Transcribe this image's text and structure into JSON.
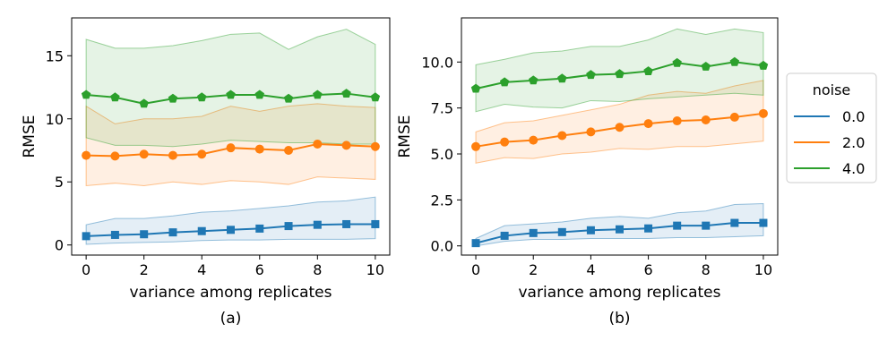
{
  "chart_data": [
    {
      "type": "line",
      "sublabel": "(a)",
      "xlabel": "variance among replicates",
      "ylabel": "RMSE",
      "xlim": [
        -0.5,
        10.5
      ],
      "ylim": [
        -0.8,
        18.0
      ],
      "xticks": [
        0,
        2,
        4,
        6,
        8,
        10
      ],
      "yticks": [
        0,
        5,
        10,
        15
      ],
      "x": [
        0,
        1,
        2,
        3,
        4,
        5,
        6,
        7,
        8,
        9,
        10
      ],
      "series": [
        {
          "name": "0.0",
          "color": "#1f77b4",
          "marker": "square",
          "values": [
            0.7,
            0.8,
            0.85,
            1.0,
            1.1,
            1.2,
            1.3,
            1.5,
            1.6,
            1.65,
            1.65
          ],
          "lower": [
            0.05,
            0.15,
            0.2,
            0.25,
            0.35,
            0.4,
            0.4,
            0.45,
            0.45,
            0.45,
            0.5
          ],
          "upper": [
            1.6,
            2.1,
            2.1,
            2.3,
            2.6,
            2.7,
            2.9,
            3.1,
            3.4,
            3.5,
            3.8
          ]
        },
        {
          "name": "2.0",
          "color": "#ff7f0e",
          "marker": "circle",
          "values": [
            7.1,
            7.05,
            7.2,
            7.1,
            7.2,
            7.7,
            7.6,
            7.5,
            8.0,
            7.9,
            7.8
          ],
          "lower": [
            4.7,
            4.9,
            4.7,
            5.0,
            4.8,
            5.1,
            5.0,
            4.8,
            5.4,
            5.3,
            5.2
          ],
          "upper": [
            11.0,
            9.6,
            10.0,
            10.0,
            10.2,
            11.0,
            10.6,
            11.0,
            11.2,
            11.0,
            10.9
          ]
        },
        {
          "name": "4.0",
          "color": "#2ca02c",
          "marker": "pentagon",
          "values": [
            11.9,
            11.7,
            11.2,
            11.6,
            11.7,
            11.9,
            11.9,
            11.6,
            11.9,
            12.0,
            11.7
          ],
          "lower": [
            8.5,
            7.9,
            7.9,
            7.8,
            8.0,
            8.3,
            8.2,
            8.1,
            8.1,
            8.0,
            8.0
          ],
          "upper": [
            16.3,
            15.6,
            15.6,
            15.8,
            16.2,
            16.7,
            16.8,
            15.5,
            16.5,
            17.1,
            15.9
          ]
        }
      ]
    },
    {
      "type": "line",
      "sublabel": "(b)",
      "xlabel": "variance among replicates",
      "ylabel": "RMSE",
      "xlim": [
        -0.5,
        10.5
      ],
      "ylim": [
        -0.5,
        12.4
      ],
      "xticks": [
        0,
        2,
        4,
        6,
        8,
        10
      ],
      "yticks": [
        0.0,
        2.5,
        5.0,
        7.5,
        10.0
      ],
      "x": [
        0,
        1,
        2,
        3,
        4,
        5,
        6,
        7,
        8,
        9,
        10
      ],
      "series": [
        {
          "name": "0.0",
          "color": "#1f77b4",
          "marker": "square",
          "values": [
            0.15,
            0.55,
            0.7,
            0.75,
            0.85,
            0.9,
            0.95,
            1.1,
            1.1,
            1.25,
            1.25
          ],
          "lower": [
            0.0,
            0.25,
            0.35,
            0.35,
            0.4,
            0.4,
            0.4,
            0.45,
            0.45,
            0.5,
            0.55
          ],
          "upper": [
            0.4,
            1.1,
            1.2,
            1.3,
            1.5,
            1.6,
            1.5,
            1.8,
            1.9,
            2.25,
            2.3
          ]
        },
        {
          "name": "2.0",
          "color": "#ff7f0e",
          "marker": "circle",
          "values": [
            5.4,
            5.65,
            5.75,
            6.0,
            6.2,
            6.45,
            6.65,
            6.8,
            6.85,
            7.0,
            7.2
          ],
          "lower": [
            4.5,
            4.8,
            4.75,
            5.0,
            5.1,
            5.3,
            5.25,
            5.4,
            5.4,
            5.55,
            5.7
          ],
          "upper": [
            6.2,
            6.7,
            6.8,
            7.1,
            7.4,
            7.7,
            8.2,
            8.4,
            8.3,
            8.7,
            9.0
          ]
        },
        {
          "name": "4.0",
          "color": "#2ca02c",
          "marker": "pentagon",
          "values": [
            8.55,
            8.9,
            9.0,
            9.1,
            9.3,
            9.35,
            9.5,
            9.95,
            9.75,
            10.0,
            9.8
          ],
          "lower": [
            7.3,
            7.7,
            7.55,
            7.5,
            7.9,
            7.85,
            8.0,
            8.1,
            8.2,
            8.3,
            8.2
          ],
          "upper": [
            9.85,
            10.15,
            10.5,
            10.6,
            10.85,
            10.85,
            11.2,
            11.8,
            11.5,
            11.8,
            11.6
          ]
        }
      ]
    }
  ],
  "legend": {
    "title": "noise",
    "entries": [
      "0.0",
      "2.0",
      "4.0"
    ],
    "colors": [
      "#1f77b4",
      "#ff7f0e",
      "#2ca02c"
    ],
    "placement": "right"
  }
}
